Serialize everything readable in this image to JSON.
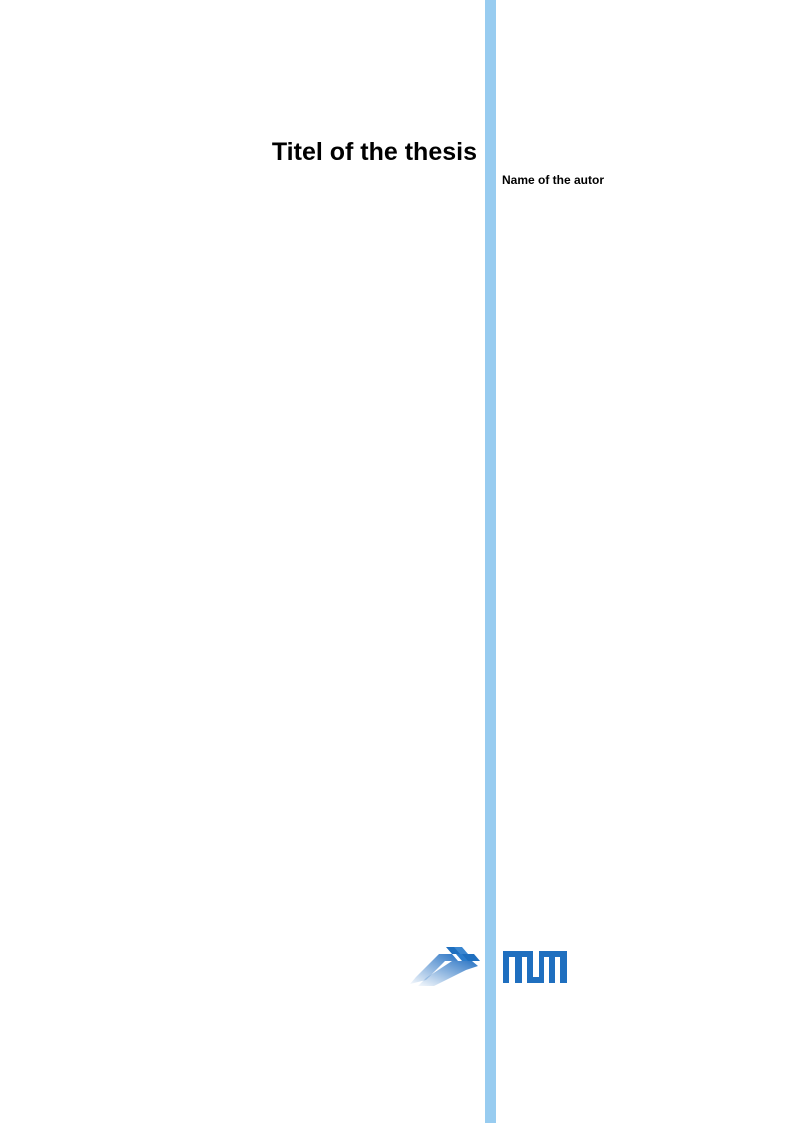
{
  "document": {
    "title": "Titel of the thesis",
    "author": "Name of the autor"
  },
  "colors": {
    "accent_bar": "#98ccf0",
    "logo_blue": "#1f6fbf"
  },
  "logos": [
    "department-logo",
    "TUM"
  ]
}
